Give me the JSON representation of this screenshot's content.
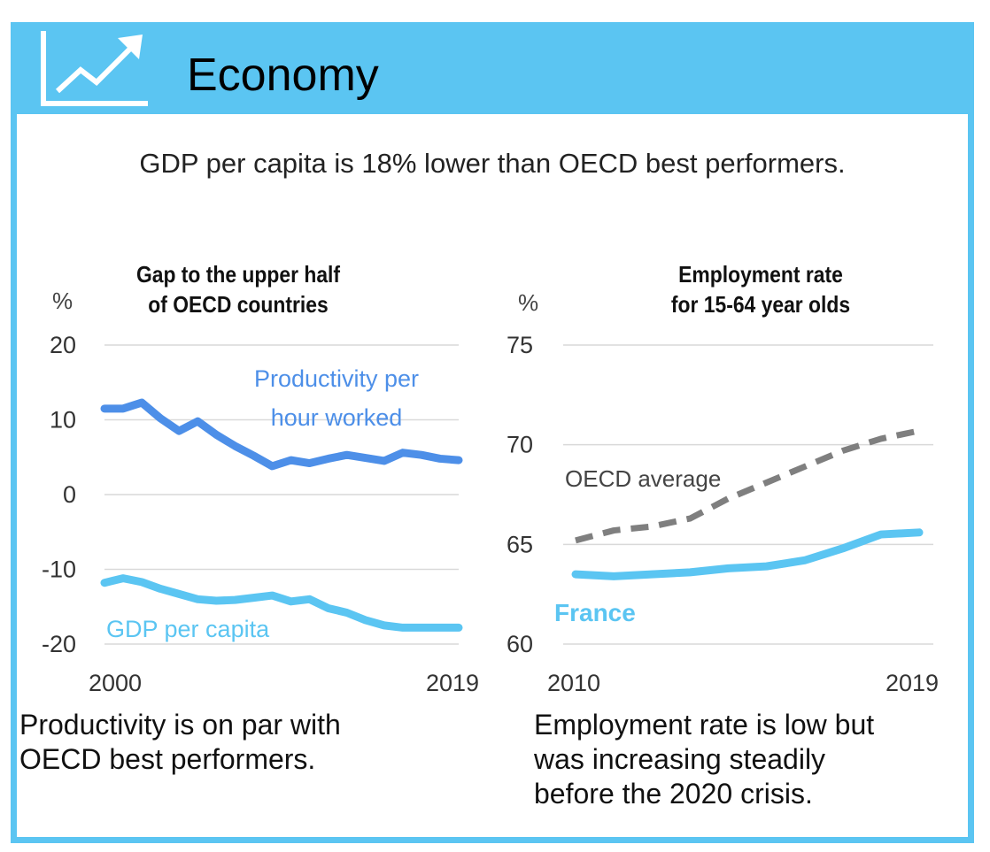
{
  "header": {
    "title": "Economy",
    "icon": "trend-chart-icon"
  },
  "subtitle": "GDP per capita is 18% lower than OECD best performers.",
  "colors": {
    "header": "#5bc5f2",
    "productivity": "#4d8fe8",
    "gdp": "#5bc5f2",
    "france": "#5bc5f2",
    "oecd": "#7f7f7f"
  },
  "chart_data": [
    {
      "type": "line",
      "title_line1": "Gap to the upper half",
      "title_line2": "of OECD countries",
      "unit": "%",
      "xlim": [
        2000,
        2019
      ],
      "ylim": [
        -20,
        20
      ],
      "yticks": [
        "20",
        "10",
        "0",
        "-10",
        "-20"
      ],
      "xticks": [
        "2000",
        "2019"
      ],
      "grid": true,
      "x": [
        2000,
        2001,
        2002,
        2003,
        2004,
        2005,
        2006,
        2007,
        2008,
        2009,
        2010,
        2011,
        2012,
        2013,
        2014,
        2015,
        2016,
        2017,
        2018,
        2019
      ],
      "series": [
        {
          "name": "Productivity per hour worked",
          "label_line1": "Productivity per",
          "label_line2": "hour worked",
          "values": [
            11.5,
            11.5,
            12.3,
            10.2,
            8.5,
            9.8,
            8,
            6.5,
            5.2,
            3.8,
            4.6,
            4.2,
            4.8,
            5.3,
            4.9,
            4.5,
            5.6,
            5.3,
            4.8,
            4.6
          ]
        },
        {
          "name": "GDP per capita",
          "label_line1": "GDP per capita",
          "label_line2": "",
          "values": [
            -11.8,
            -11.2,
            -11.7,
            -12.6,
            -13.3,
            -14,
            -14.2,
            -14.1,
            -13.8,
            -13.5,
            -14.3,
            -14,
            -15.2,
            -15.8,
            -16.8,
            -17.5,
            -17.8,
            -17.8,
            -17.8,
            -17.8
          ]
        }
      ],
      "caption_line1": "Productivity is on par with",
      "caption_line2": "OECD best performers."
    },
    {
      "type": "line",
      "title_line1": "Employment rate",
      "title_line2": "for 15-64 year olds",
      "unit": "%",
      "xlim": [
        2010,
        2019
      ],
      "ylim": [
        60,
        75
      ],
      "yticks": [
        "75",
        "70",
        "65",
        "60"
      ],
      "xticks": [
        "2010",
        "2019"
      ],
      "grid": true,
      "x": [
        2010,
        2011,
        2012,
        2013,
        2014,
        2015,
        2016,
        2017,
        2018,
        2019
      ],
      "series": [
        {
          "name": "OECD average",
          "label_line1": "OECD average",
          "values": [
            65.2,
            65.7,
            65.9,
            66.3,
            67.3,
            68.1,
            68.9,
            69.7,
            70.3,
            70.7
          ]
        },
        {
          "name": "France",
          "label_line1": "France",
          "values": [
            63.5,
            63.4,
            63.5,
            63.6,
            63.8,
            63.9,
            64.2,
            64.8,
            65.5,
            65.6
          ]
        }
      ],
      "caption_line1": "Employment rate is low but",
      "caption_line2": "was increasing steadily",
      "caption_line3": "before the 2020 crisis."
    }
  ]
}
